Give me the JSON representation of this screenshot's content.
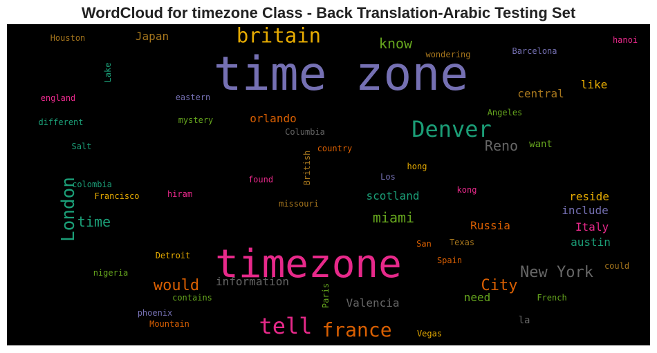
{
  "title": "WordCloud for timezone Class - Back Translation-Arabic Testing Set",
  "chart_data": {
    "type": "wordcloud",
    "background": "#000000",
    "palette": [
      "#1b9e77",
      "#d95f02",
      "#7570b3",
      "#e7298a",
      "#66a61e",
      "#e6ab02",
      "#a6761d",
      "#666666"
    ],
    "words": [
      {
        "text": "time zone",
        "color": "#7570b3",
        "weight": 1.0
      },
      {
        "text": "timezone",
        "color": "#e7298a",
        "weight": 0.88
      },
      {
        "text": "britain",
        "color": "#e6ab02",
        "weight": 0.45
      },
      {
        "text": "Denver",
        "color": "#1b9e77",
        "weight": 0.47
      },
      {
        "text": "London",
        "color": "#1b9e77",
        "weight": 0.38
      },
      {
        "text": "tell",
        "color": "#e7298a",
        "weight": 0.47
      },
      {
        "text": "france",
        "color": "#d95f02",
        "weight": 0.42
      },
      {
        "text": "New York",
        "color": "#666666",
        "weight": 0.32
      },
      {
        "text": "City",
        "color": "#d95f02",
        "weight": 0.32
      },
      {
        "text": "would",
        "color": "#d95f02",
        "weight": 0.32
      },
      {
        "text": "Reno",
        "color": "#666666",
        "weight": 0.3
      },
      {
        "text": "miami",
        "color": "#66a61e",
        "weight": 0.3
      },
      {
        "text": "time",
        "color": "#1b9e77",
        "weight": 0.3
      },
      {
        "text": "know",
        "color": "#66a61e",
        "weight": 0.3
      },
      {
        "text": "information",
        "color": "#666666",
        "weight": 0.25
      },
      {
        "text": "Valencia",
        "color": "#666666",
        "weight": 0.25
      },
      {
        "text": "scotland",
        "color": "#1b9e77",
        "weight": 0.25
      },
      {
        "text": "Russia",
        "color": "#d95f02",
        "weight": 0.23
      },
      {
        "text": "Italy",
        "color": "#e7298a",
        "weight": 0.23
      },
      {
        "text": "austin",
        "color": "#1b9e77",
        "weight": 0.23
      },
      {
        "text": "reside",
        "color": "#e6ab02",
        "weight": 0.23
      },
      {
        "text": "include",
        "color": "#7570b3",
        "weight": 0.23
      },
      {
        "text": "central",
        "color": "#a6761d",
        "weight": 0.23
      },
      {
        "text": "like",
        "color": "#e6ab02",
        "weight": 0.23
      },
      {
        "text": "orlando",
        "color": "#d95f02",
        "weight": 0.23
      },
      {
        "text": "need",
        "color": "#66a61e",
        "weight": 0.23
      },
      {
        "text": "Japan",
        "color": "#a6761d",
        "weight": 0.23
      },
      {
        "text": "la",
        "color": "#666666",
        "weight": 0.21
      },
      {
        "text": "want",
        "color": "#66a61e",
        "weight": 0.19
      },
      {
        "text": "wondering",
        "color": "#a6761d",
        "weight": 0.18
      },
      {
        "text": "Barcelona",
        "color": "#7570b3",
        "weight": 0.17
      },
      {
        "text": "hanoi",
        "color": "#e7298a",
        "weight": 0.17
      },
      {
        "text": "Houston",
        "color": "#a6761d",
        "weight": 0.17
      },
      {
        "text": "Lake",
        "color": "#1b9e77",
        "weight": 0.16
      },
      {
        "text": "england",
        "color": "#e7298a",
        "weight": 0.17
      },
      {
        "text": "eastern",
        "color": "#7570b3",
        "weight": 0.17
      },
      {
        "text": "different",
        "color": "#1b9e77",
        "weight": 0.17
      },
      {
        "text": "mystery",
        "color": "#66a61e",
        "weight": 0.17
      },
      {
        "text": "Columbia",
        "color": "#666666",
        "weight": 0.17
      },
      {
        "text": "British",
        "color": "#a6761d",
        "weight": 0.17
      },
      {
        "text": "country",
        "color": "#d95f02",
        "weight": 0.17
      },
      {
        "text": "Angeles",
        "color": "#66a61e",
        "weight": 0.17
      },
      {
        "text": "Salt",
        "color": "#1b9e77",
        "weight": 0.17
      },
      {
        "text": "hong",
        "color": "#e6ab02",
        "weight": 0.17
      },
      {
        "text": "Los",
        "color": "#7570b3",
        "weight": 0.17
      },
      {
        "text": "found",
        "color": "#e7298a",
        "weight": 0.17
      },
      {
        "text": "colombia",
        "color": "#1b9e77",
        "weight": 0.17
      },
      {
        "text": "kong",
        "color": "#e7298a",
        "weight": 0.17
      },
      {
        "text": "Francisco",
        "color": "#e6ab02",
        "weight": 0.17
      },
      {
        "text": "hiram",
        "color": "#e7298a",
        "weight": 0.17
      },
      {
        "text": "missouri",
        "color": "#a6761d",
        "weight": 0.17
      },
      {
        "text": "San",
        "color": "#d95f02",
        "weight": 0.17
      },
      {
        "text": "Texas",
        "color": "#a6761d",
        "weight": 0.17
      },
      {
        "text": "Detroit",
        "color": "#e6ab02",
        "weight": 0.17
      },
      {
        "text": "Spain",
        "color": "#d95f02",
        "weight": 0.17
      },
      {
        "text": "could",
        "color": "#a6761d",
        "weight": 0.17
      },
      {
        "text": "nigeria",
        "color": "#66a61e",
        "weight": 0.17
      },
      {
        "text": "Paris",
        "color": "#66a61e",
        "weight": 0.17
      },
      {
        "text": "contains",
        "color": "#66a61e",
        "weight": 0.17
      },
      {
        "text": "French",
        "color": "#66a61e",
        "weight": 0.17
      },
      {
        "text": "phoenix",
        "color": "#7570b3",
        "weight": 0.17
      },
      {
        "text": "Mountain",
        "color": "#d95f02",
        "weight": 0.17
      },
      {
        "text": "Vegas",
        "color": "#e6ab02",
        "weight": 0.17
      }
    ]
  }
}
